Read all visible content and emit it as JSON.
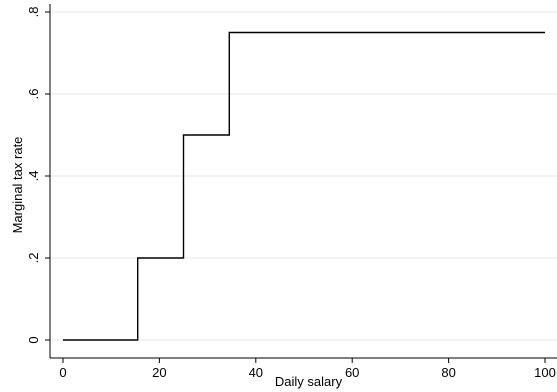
{
  "chart_data": {
    "type": "line",
    "title": "",
    "xlabel": "Daily salary",
    "ylabel": "Marginal tax rate",
    "xlim": [
      0,
      100
    ],
    "ylim": [
      0,
      0.8
    ],
    "grid": true,
    "legend": "none",
    "x_ticks": [
      0,
      20,
      40,
      60,
      80,
      100
    ],
    "x_tick_labels": [
      "0",
      "20",
      "40",
      "60",
      "80",
      "100"
    ],
    "y_ticks": [
      0,
      0.2,
      0.4,
      0.6,
      0.8
    ],
    "y_tick_labels": [
      "0",
      ".2",
      ".4",
      ".6",
      ".8"
    ],
    "series": [
      {
        "step": "post",
        "x": [
          0,
          15.5,
          25,
          34.5,
          100
        ],
        "y": [
          0,
          0.2,
          0.5,
          0.75,
          0.75
        ]
      }
    ],
    "colors": {
      "line": "#000000",
      "grid": "#e6e6e6",
      "axis": "#000000"
    }
  }
}
